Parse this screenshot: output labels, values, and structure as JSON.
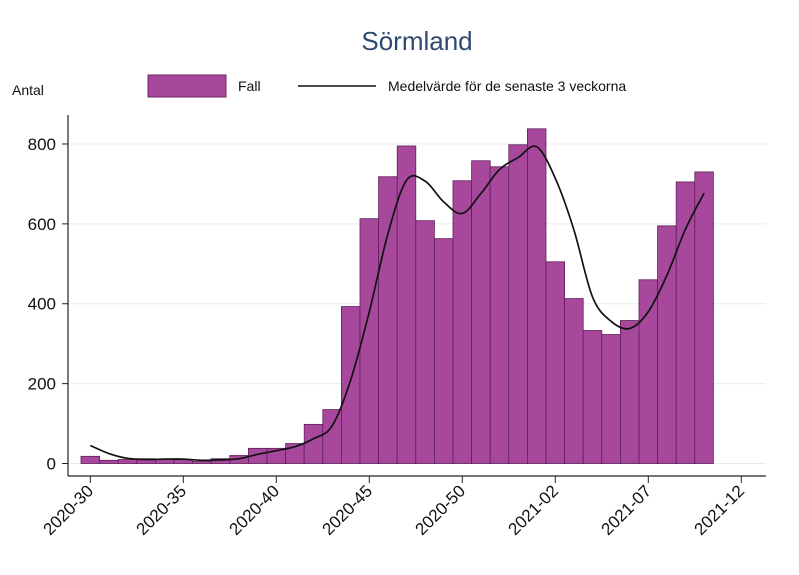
{
  "chart_data": {
    "type": "bar",
    "title": "Sörmland",
    "ylabel": "Antal",
    "xlabel": "",
    "legend": {
      "placement": "top",
      "bar_label": "Fall",
      "line_label": "Medelvärde för de senaste 3 veckorna"
    },
    "ylim": [
      0,
      880
    ],
    "yticks": [
      0,
      200,
      400,
      600,
      800
    ],
    "grid": true,
    "x_tick_labels": [
      "2020-30",
      "2020-35",
      "2020-40",
      "2020-45",
      "2020-50",
      "2021-02",
      "2021-07",
      "2021-12"
    ],
    "categories": [
      "2020-30",
      "2020-31",
      "2020-32",
      "2020-33",
      "2020-34",
      "2020-35",
      "2020-36",
      "2020-37",
      "2020-38",
      "2020-39",
      "2020-40",
      "2020-41",
      "2020-42",
      "2020-43",
      "2020-44",
      "2020-45",
      "2020-46",
      "2020-47",
      "2020-48",
      "2020-49",
      "2020-50",
      "2020-51",
      "2020-52",
      "2020-53",
      "2021-01",
      "2021-02",
      "2021-03",
      "2021-04",
      "2021-05",
      "2021-06",
      "2021-07",
      "2021-08",
      "2021-09",
      "2021-10"
    ],
    "series": [
      {
        "name": "Fall",
        "type": "bar",
        "color": "#a8489c",
        "values": [
          18,
          8,
          10,
          12,
          10,
          10,
          5,
          12,
          20,
          38,
          38,
          50,
          98,
          135,
          393,
          613,
          718,
          795,
          608,
          563,
          708,
          758,
          743,
          798,
          838,
          505,
          413,
          333,
          323,
          358,
          460,
          595,
          705,
          730
        ]
      },
      {
        "name": "Medelvärde för de senaste 3 veckorna",
        "type": "line",
        "color": "#111111",
        "values": [
          45,
          25,
          13,
          10,
          11,
          11,
          8,
          9,
          12,
          23,
          32,
          42,
          62,
          94,
          209,
          380,
          575,
          709,
          707,
          655,
          626,
          676,
          736,
          766,
          793,
          714,
          585,
          417,
          356,
          338,
          380,
          471,
          587,
          677
        ]
      }
    ]
  }
}
